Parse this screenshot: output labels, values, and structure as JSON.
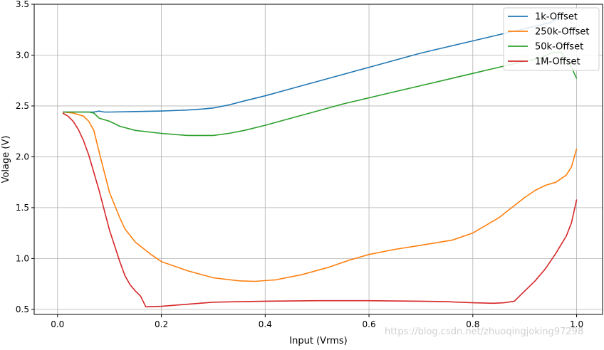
{
  "chart_data": {
    "type": "line",
    "title": "",
    "xlabel": "Input (Vrms)",
    "ylabel": "Volage (V)",
    "xlim": [
      -0.045,
      1.05
    ],
    "ylim": [
      0.45,
      3.5
    ],
    "xticks": [
      0.0,
      0.2,
      0.4,
      0.6,
      0.8,
      1.0
    ],
    "xtick_labels": [
      "0.0",
      "0.2",
      "0.4",
      "0.6",
      "0.8",
      "1.0"
    ],
    "yticks": [
      0.5,
      1.0,
      1.5,
      2.0,
      2.5,
      3.0,
      3.5
    ],
    "ytick_labels": [
      "0.5",
      "1.0",
      "1.5",
      "2.0",
      "2.5",
      "3.0",
      "3.5"
    ],
    "grid": true,
    "legend_position": "top-right",
    "series": [
      {
        "name": "1k-Offset",
        "color": "#1f77b4",
        "x": [
          0.01,
          0.05,
          0.07,
          0.08,
          0.09,
          0.1,
          0.15,
          0.2,
          0.25,
          0.28,
          0.3,
          0.33,
          0.36,
          0.4,
          0.45,
          0.5,
          0.55,
          0.6,
          0.65,
          0.7,
          0.75,
          0.8,
          0.85,
          0.9,
          0.95,
          0.97
        ],
        "y": [
          2.44,
          2.44,
          2.44,
          2.45,
          2.44,
          2.44,
          2.445,
          2.45,
          2.46,
          2.47,
          2.48,
          2.51,
          2.55,
          2.6,
          2.67,
          2.74,
          2.81,
          2.88,
          2.95,
          3.02,
          3.08,
          3.14,
          3.2,
          3.26,
          3.32,
          3.38
        ]
      },
      {
        "name": "250k-Offset",
        "color": "#ff7f0e",
        "x": [
          0.01,
          0.03,
          0.05,
          0.06,
          0.07,
          0.08,
          0.09,
          0.1,
          0.12,
          0.13,
          0.15,
          0.18,
          0.2,
          0.25,
          0.3,
          0.35,
          0.38,
          0.42,
          0.47,
          0.52,
          0.56,
          0.6,
          0.65,
          0.7,
          0.76,
          0.8,
          0.85,
          0.88,
          0.9,
          0.92,
          0.94,
          0.96,
          0.98,
          0.99,
          1.0
        ],
        "y": [
          2.44,
          2.43,
          2.4,
          2.35,
          2.26,
          2.05,
          1.85,
          1.65,
          1.4,
          1.29,
          1.16,
          1.04,
          0.97,
          0.88,
          0.81,
          0.78,
          0.775,
          0.79,
          0.84,
          0.91,
          0.98,
          1.04,
          1.09,
          1.13,
          1.18,
          1.25,
          1.4,
          1.52,
          1.6,
          1.67,
          1.72,
          1.75,
          1.82,
          1.9,
          2.08
        ]
      },
      {
        "name": "50k-Offset",
        "color": "#2ca02c",
        "x": [
          0.01,
          0.04,
          0.06,
          0.07,
          0.08,
          0.1,
          0.12,
          0.15,
          0.2,
          0.25,
          0.3,
          0.33,
          0.36,
          0.4,
          0.45,
          0.5,
          0.55,
          0.6,
          0.65,
          0.7,
          0.75,
          0.8,
          0.85,
          0.9,
          0.93,
          0.95,
          0.97,
          0.99,
          1.0
        ],
        "y": [
          2.44,
          2.44,
          2.44,
          2.43,
          2.38,
          2.35,
          2.3,
          2.26,
          2.23,
          2.21,
          2.21,
          2.23,
          2.26,
          2.31,
          2.38,
          2.45,
          2.52,
          2.58,
          2.64,
          2.7,
          2.76,
          2.82,
          2.88,
          2.94,
          2.97,
          3.02,
          3.03,
          2.88,
          2.77
        ]
      },
      {
        "name": "1M-Offset",
        "color": "#d62728",
        "x": [
          0.01,
          0.02,
          0.03,
          0.04,
          0.05,
          0.06,
          0.08,
          0.1,
          0.12,
          0.13,
          0.14,
          0.15,
          0.16,
          0.17,
          0.2,
          0.25,
          0.3,
          0.35,
          0.4,
          0.5,
          0.6,
          0.7,
          0.75,
          0.8,
          0.84,
          0.86,
          0.88,
          0.9,
          0.92,
          0.94,
          0.96,
          0.98,
          0.99,
          1.0
        ],
        "y": [
          2.43,
          2.4,
          2.35,
          2.27,
          2.16,
          2.02,
          1.67,
          1.28,
          0.97,
          0.83,
          0.74,
          0.68,
          0.63,
          0.525,
          0.53,
          0.55,
          0.57,
          0.575,
          0.58,
          0.585,
          0.585,
          0.58,
          0.575,
          0.565,
          0.56,
          0.565,
          0.58,
          0.68,
          0.78,
          0.9,
          1.05,
          1.22,
          1.35,
          1.58
        ]
      }
    ]
  },
  "watermark": "https://blog.csdn.net/zhuoqingjoking97298"
}
